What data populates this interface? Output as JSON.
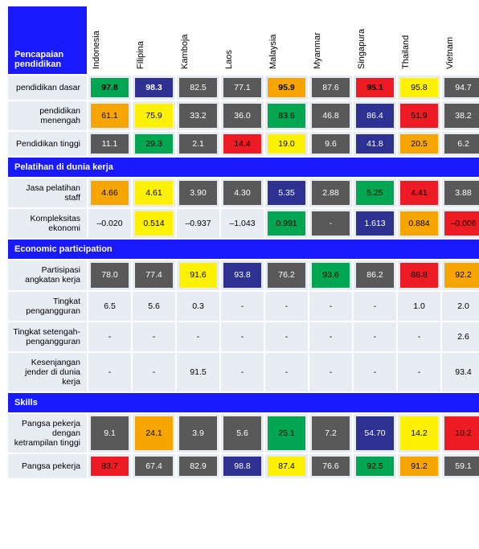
{
  "palette": {
    "green": "#00a651",
    "darknavy": "#2e3192",
    "gray": "#595959",
    "orange": "#f7a600",
    "yellow": "#fff200",
    "red": "#ed1c24",
    "plain": "#e8ecf3",
    "section": "#1a1aff",
    "header": "#1a1aff"
  },
  "countries": [
    "Indonesia",
    "Filipina",
    "Kamboja",
    "Laos",
    "Malaysia",
    "Myanmar",
    "Singapura",
    "Thailand",
    "Vietnam"
  ],
  "corner_label": "Pencapaian pendidikan",
  "sections": [
    {
      "title": null,
      "rows": [
        {
          "label": "pendidikan dasar",
          "cells": [
            {
              "v": "97.8",
              "c": "green",
              "b": true
            },
            {
              "v": "98.3",
              "c": "darknavy",
              "b": true
            },
            {
              "v": "82.5",
              "c": "gray"
            },
            {
              "v": "77.1",
              "c": "gray"
            },
            {
              "v": "95.9",
              "c": "orange",
              "b": true
            },
            {
              "v": "87.6",
              "c": "gray"
            },
            {
              "v": "95.1",
              "c": "red",
              "b": true
            },
            {
              "v": "95.8",
              "c": "yellow"
            },
            {
              "v": "94.7",
              "c": "gray"
            }
          ]
        },
        {
          "label": "pendidikan menengah",
          "cells": [
            {
              "v": "61.1",
              "c": "orange"
            },
            {
              "v": "75.9",
              "c": "yellow"
            },
            {
              "v": "33.2",
              "c": "gray"
            },
            {
              "v": "36.0",
              "c": "gray"
            },
            {
              "v": "83.6",
              "c": "green"
            },
            {
              "v": "46.8",
              "c": "gray"
            },
            {
              "v": "86.4",
              "c": "darknavy"
            },
            {
              "v": "51.9",
              "c": "red"
            },
            {
              "v": "38.2",
              "c": "gray"
            }
          ]
        },
        {
          "label": "Pendidikan tinggi",
          "cells": [
            {
              "v": "11.1",
              "c": "gray"
            },
            {
              "v": "29.3",
              "c": "green"
            },
            {
              "v": "2.1",
              "c": "gray"
            },
            {
              "v": "14.4",
              "c": "red"
            },
            {
              "v": "19.0",
              "c": "yellow"
            },
            {
              "v": "9.6",
              "c": "gray"
            },
            {
              "v": "41.8",
              "c": "darknavy"
            },
            {
              "v": "20.5",
              "c": "orange"
            },
            {
              "v": "6.2",
              "c": "gray"
            }
          ]
        }
      ]
    },
    {
      "title": "Pelatihan di dunia kerja",
      "rows": [
        {
          "label": "Jasa pelatihan staff",
          "cells": [
            {
              "v": "4.66",
              "c": "orange"
            },
            {
              "v": "4.61",
              "c": "yellow"
            },
            {
              "v": "3.90",
              "c": "gray"
            },
            {
              "v": "4.30",
              "c": "gray"
            },
            {
              "v": "5.35",
              "c": "darknavy"
            },
            {
              "v": "2.88",
              "c": "gray"
            },
            {
              "v": "5.25",
              "c": "green"
            },
            {
              "v": "4.41",
              "c": "red"
            },
            {
              "v": "3.88",
              "c": "gray"
            }
          ]
        },
        {
          "label": "Kompleksitas ekonomi",
          "cells": [
            {
              "v": "–0.020",
              "c": "plain"
            },
            {
              "v": "0.514",
              "c": "yellow"
            },
            {
              "v": "–0.937",
              "c": "plain"
            },
            {
              "v": "–1.043",
              "c": "plain"
            },
            {
              "v": "0.991",
              "c": "green"
            },
            {
              "v": "-",
              "c": "gray"
            },
            {
              "v": "1.613",
              "c": "darknavy"
            },
            {
              "v": "0.884",
              "c": "orange"
            },
            {
              "v": "–0.006",
              "c": "red"
            }
          ]
        }
      ]
    },
    {
      "title": "Economic participation",
      "rows": [
        {
          "label": "Partisipasi angkatan kerja",
          "cells": [
            {
              "v": "78.0",
              "c": "gray"
            },
            {
              "v": "77.4",
              "c": "gray"
            },
            {
              "v": "91.6",
              "c": "yellow"
            },
            {
              "v": "93.8",
              "c": "darknavy"
            },
            {
              "v": "76.2",
              "c": "gray"
            },
            {
              "v": "93.6",
              "c": "green"
            },
            {
              "v": "86.2",
              "c": "gray"
            },
            {
              "v": "88.8",
              "c": "red"
            },
            {
              "v": "92.2",
              "c": "orange"
            }
          ]
        },
        {
          "label": "Tingkat pengangguran",
          "cells": [
            {
              "v": "6.5",
              "c": "plain"
            },
            {
              "v": "5.6",
              "c": "plain"
            },
            {
              "v": "0.3",
              "c": "plain"
            },
            {
              "v": "-",
              "c": "plain"
            },
            {
              "v": "-",
              "c": "plain"
            },
            {
              "v": "-",
              "c": "plain"
            },
            {
              "v": "-",
              "c": "plain"
            },
            {
              "v": "1.0",
              "c": "plain"
            },
            {
              "v": "2.0",
              "c": "plain"
            }
          ]
        },
        {
          "label": "Tingkat setengah-pengangguran",
          "cells": [
            {
              "v": "-",
              "c": "plain"
            },
            {
              "v": "-",
              "c": "plain"
            },
            {
              "v": "-",
              "c": "plain"
            },
            {
              "v": "-",
              "c": "plain"
            },
            {
              "v": "-",
              "c": "plain"
            },
            {
              "v": "-",
              "c": "plain"
            },
            {
              "v": "-",
              "c": "plain"
            },
            {
              "v": "-",
              "c": "plain"
            },
            {
              "v": "2.6",
              "c": "plain"
            }
          ]
        },
        {
          "label": "Kesenjangan jender di dunia kerja",
          "cells": [
            {
              "v": "-",
              "c": "plain"
            },
            {
              "v": "-",
              "c": "plain"
            },
            {
              "v": "91.5",
              "c": "plain"
            },
            {
              "v": "-",
              "c": "plain"
            },
            {
              "v": "-",
              "c": "plain"
            },
            {
              "v": "-",
              "c": "plain"
            },
            {
              "v": "-",
              "c": "plain"
            },
            {
              "v": "-",
              "c": "plain"
            },
            {
              "v": "93.4",
              "c": "plain"
            }
          ]
        }
      ]
    },
    {
      "title": "Skills",
      "rows": [
        {
          "label": "Pangsa pekerja dengan ketrampilan tinggi",
          "cells": [
            {
              "v": "9.1",
              "c": "gray"
            },
            {
              "v": "24.1",
              "c": "orange"
            },
            {
              "v": "3.9",
              "c": "gray"
            },
            {
              "v": "5.6",
              "c": "gray"
            },
            {
              "v": "25.1",
              "c": "green"
            },
            {
              "v": "7.2",
              "c": "gray"
            },
            {
              "v": "54.70",
              "c": "darknavy"
            },
            {
              "v": "14.2",
              "c": "yellow"
            },
            {
              "v": "10.2",
              "c": "red"
            }
          ]
        },
        {
          "label": "Pangsa pekerja",
          "cells": [
            {
              "v": "83.7",
              "c": "red"
            },
            {
              "v": "67.4",
              "c": "gray"
            },
            {
              "v": "82.9",
              "c": "gray"
            },
            {
              "v": "98.8",
              "c": "darknavy"
            },
            {
              "v": "87.4",
              "c": "yellow"
            },
            {
              "v": "76.6",
              "c": "gray"
            },
            {
              "v": "92.5",
              "c": "green"
            },
            {
              "v": "91.2",
              "c": "orange"
            },
            {
              "v": "59.1",
              "c": "gray"
            }
          ]
        }
      ]
    }
  ],
  "text_color": {
    "green": "#000",
    "darknavy": "#fff",
    "gray": "#fff",
    "orange": "#000",
    "yellow": "#000",
    "red": "#000",
    "plain": "#000"
  }
}
